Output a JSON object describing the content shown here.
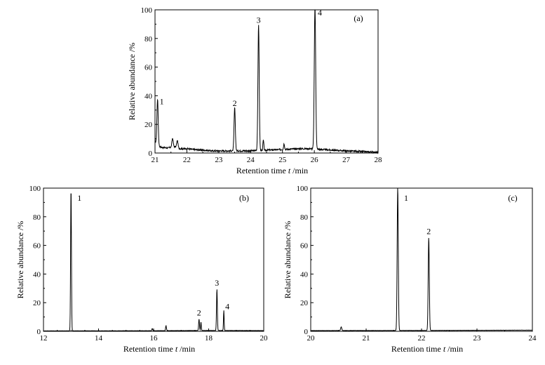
{
  "chart_data": [
    {
      "type": "line",
      "panel_label": "(a)",
      "xlabel": "Retention time",
      "xlabel_var": "t",
      "xlabel_unit": "/min",
      "ylabel": "Relative abundance /%",
      "xlim": [
        21,
        28
      ],
      "ylim": [
        0,
        100
      ],
      "xticks": [
        21,
        22,
        23,
        24,
        25,
        26,
        27,
        28
      ],
      "yticks": [
        0,
        20,
        40,
        60,
        80,
        100
      ],
      "baseline": [
        [
          21.0,
          8
        ],
        [
          21.1,
          5
        ],
        [
          21.2,
          4
        ],
        [
          21.4,
          3.5
        ],
        [
          21.6,
          4.5
        ],
        [
          21.8,
          3
        ],
        [
          22.0,
          3
        ],
        [
          22.2,
          2.5
        ],
        [
          22.5,
          2
        ],
        [
          22.8,
          1.5
        ],
        [
          23.0,
          1.5
        ],
        [
          23.3,
          1.5
        ],
        [
          23.6,
          1.5
        ],
        [
          24.0,
          1.5
        ],
        [
          24.5,
          2
        ],
        [
          25.0,
          2.5
        ],
        [
          25.5,
          3
        ],
        [
          25.9,
          3
        ],
        [
          26.2,
          2.5
        ],
        [
          26.6,
          2
        ],
        [
          27.0,
          1.5
        ],
        [
          27.5,
          1
        ],
        [
          28.0,
          0.5
        ]
      ],
      "peaks": [
        {
          "label": "1",
          "x": 21.08,
          "y": 32,
          "w": 0.02
        },
        {
          "label": "2",
          "x": 23.5,
          "y": 30,
          "w": 0.02
        },
        {
          "label": "3",
          "x": 24.25,
          "y": 88,
          "w": 0.02
        },
        {
          "label": "4",
          "x": 26.02,
          "y": 100,
          "w": 0.022
        }
      ],
      "minor_peaks": [
        {
          "x": 24.4,
          "y": 7,
          "w": 0.015
        },
        {
          "x": 25.05,
          "y": 4,
          "w": 0.015
        },
        {
          "x": 21.55,
          "y": 6,
          "w": 0.02
        },
        {
          "x": 21.7,
          "y": 5,
          "w": 0.02
        }
      ]
    },
    {
      "type": "line",
      "panel_label": "(b)",
      "xlabel": "Retention time",
      "xlabel_var": "t",
      "xlabel_unit": "/min",
      "ylabel": "Relative abundance /%",
      "xlim": [
        12,
        20
      ],
      "ylim": [
        0,
        100
      ],
      "xticks": [
        12,
        14,
        16,
        18,
        20
      ],
      "yticks": [
        0,
        20,
        40,
        60,
        80,
        100
      ],
      "baseline": [
        [
          12.0,
          0.3
        ],
        [
          16.0,
          0.4
        ],
        [
          18.0,
          0.6
        ],
        [
          20.0,
          0.5
        ]
      ],
      "peaks": [
        {
          "label": "1",
          "x": 13.0,
          "y": 100,
          "w": 0.015
        },
        {
          "label": "2",
          "x": 17.65,
          "y": 8,
          "w": 0.015
        },
        {
          "label": "3",
          "x": 18.3,
          "y": 29,
          "w": 0.015
        },
        {
          "label": "4",
          "x": 18.55,
          "y": 14,
          "w": 0.012
        }
      ],
      "minor_peaks": [
        {
          "x": 16.45,
          "y": 3.5,
          "w": 0.015
        },
        {
          "x": 17.72,
          "y": 6,
          "w": 0.012
        },
        {
          "x": 15.95,
          "y": 1.5,
          "w": 0.015
        }
      ]
    },
    {
      "type": "line",
      "panel_label": "(c)",
      "xlabel": "Retention time",
      "xlabel_var": "t",
      "xlabel_unit": "/min",
      "ylabel": "Relative abundance /%",
      "xlim": [
        20,
        24
      ],
      "ylim": [
        0,
        100
      ],
      "xticks": [
        20,
        21,
        22,
        23,
        24
      ],
      "yticks": [
        0,
        20,
        40,
        60,
        80,
        100
      ],
      "baseline": [
        [
          20.0,
          0.5
        ],
        [
          22.0,
          0.6
        ],
        [
          24.0,
          0.8
        ]
      ],
      "peaks": [
        {
          "label": "1",
          "x": 21.57,
          "y": 100,
          "w": 0.01
        },
        {
          "label": "2",
          "x": 22.13,
          "y": 65,
          "w": 0.01
        }
      ],
      "minor_peaks": [
        {
          "x": 20.55,
          "y": 2.5,
          "w": 0.01
        }
      ]
    }
  ]
}
